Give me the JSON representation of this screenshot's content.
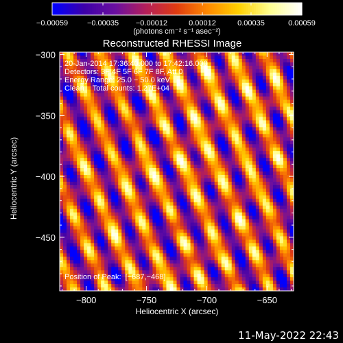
{
  "chart_data": {
    "type": "heatmap",
    "title": "Reconstructed RHESSI Image",
    "xlabel": "Heliocentric X (arcsec)",
    "ylabel": "Heliocentric Y (arcsec)",
    "xlim": [
      -822,
      -628
    ],
    "ylim": [
      -494,
      -298
    ],
    "x_ticks": [
      -800,
      -750,
      -700,
      -650
    ],
    "x_tick_labels": [
      "−800",
      "−750",
      "−700",
      "−650"
    ],
    "y_ticks": [
      -300,
      -350,
      -400,
      -450
    ],
    "y_tick_labels": [
      "−300",
      "−350",
      "−400",
      "−450"
    ],
    "colorbar": {
      "range": [
        -0.00059,
        0.00059
      ],
      "ticks": [
        -0.00059,
        -0.00035,
        -0.00012,
        0.00012,
        0.00035,
        0.00059
      ],
      "tick_labels": [
        "−0.00059",
        "−0.00035",
        "−0.00012",
        "0.00012",
        "0.00035",
        "0.00059"
      ],
      "units": "(photons cm⁻² s⁻¹ asec⁻²)",
      "colors": [
        "#0000ff",
        "#3d00a8",
        "#6a0fa0",
        "#b41f5a",
        "#e03c10",
        "#ff8a00",
        "#ffd000",
        "#ffff90",
        "#ffffff"
      ]
    },
    "annotations": [
      "20-Jan-2014 17:36:40.000 to 17:42:16.000",
      "Detectors: 3F 4F 5F 6F 7F 8F, Att 0",
      "Energy Range: 25.0 − 50.0 keV",
      "Clean    Total counts: 1.27E+04"
    ],
    "peak_label": "Position of Peak:  [−687,−468]",
    "peak": [
      -687,
      -468
    ]
  },
  "timestamp": "11-May-2022 22:43"
}
